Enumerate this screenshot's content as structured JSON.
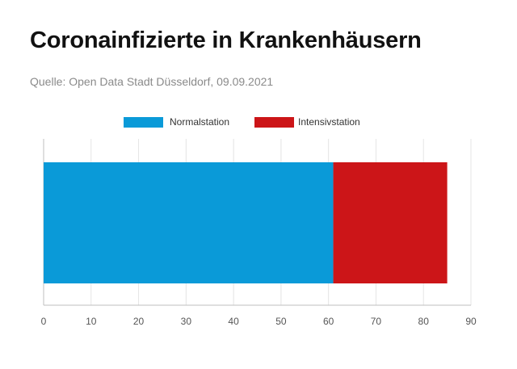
{
  "title": "Coronainfizierte in Krankenhäusern",
  "subtitle": "Quelle: Open Data Stadt Düsseldorf, 09.09.2021",
  "chart_data": {
    "type": "bar",
    "orientation": "horizontal",
    "stacked": true,
    "categories": [
      ""
    ],
    "series": [
      {
        "name": "Normalstation",
        "values": [
          61
        ],
        "color": "#0a9ad8"
      },
      {
        "name": "Intensivstation",
        "values": [
          24
        ],
        "color": "#cc1518"
      }
    ],
    "xlim": [
      0,
      90
    ],
    "xticks": [
      0,
      10,
      20,
      30,
      40,
      50,
      60,
      70,
      80,
      90
    ],
    "grid": true,
    "legend": "top-center"
  }
}
